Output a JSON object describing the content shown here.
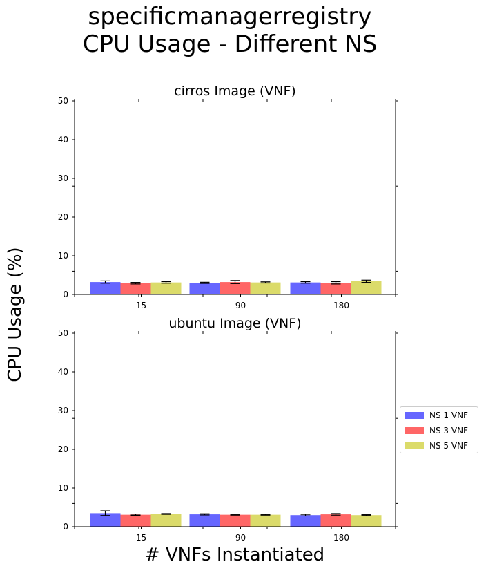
{
  "suptitle_line1": "specificmanagerregistry",
  "suptitle_line2": "CPU Usage - Different NS",
  "ylabel": "CPU Usage (%)",
  "xlabel": "# VNFs Instantiated",
  "legend": {
    "placement": "center-right",
    "items": [
      {
        "label": "NS 1 VNF",
        "color": "#6666ff"
      },
      {
        "label": "NS 3 VNF",
        "color": "#ff6666"
      },
      {
        "label": "NS 5 VNF",
        "color": "#dbdb6a"
      }
    ]
  },
  "chart_data": [
    {
      "type": "bar",
      "title": "cirros Image (VNF)",
      "categories": [
        "15",
        "90",
        "180"
      ],
      "ylim": [
        0,
        50
      ],
      "yticks": [
        0,
        10,
        20,
        30,
        40,
        50
      ],
      "series": [
        {
          "name": "NS 1 VNF",
          "color": "#6666ff",
          "values": [
            3.2,
            3.0,
            3.1
          ],
          "errors": [
            0.3,
            0.15,
            0.2
          ]
        },
        {
          "name": "NS 3 VNF",
          "color": "#ff6666",
          "values": [
            2.9,
            3.2,
            3.0
          ],
          "errors": [
            0.2,
            0.4,
            0.3
          ]
        },
        {
          "name": "NS 5 VNF",
          "color": "#dbdb6a",
          "values": [
            3.1,
            3.1,
            3.4
          ],
          "errors": [
            0.2,
            0.15,
            0.3
          ]
        }
      ]
    },
    {
      "type": "bar",
      "title": "ubuntu Image (VNF)",
      "categories": [
        "15",
        "90",
        "180"
      ],
      "ylim": [
        0,
        50
      ],
      "yticks": [
        0,
        10,
        20,
        30,
        40,
        50
      ],
      "series": [
        {
          "name": "NS 1 VNF",
          "color": "#6666ff",
          "values": [
            3.5,
            3.2,
            3.0
          ],
          "errors": [
            0.6,
            0.15,
            0.2
          ]
        },
        {
          "name": "NS 3 VNF",
          "color": "#ff6666",
          "values": [
            3.1,
            3.1,
            3.2
          ],
          "errors": [
            0.15,
            0.1,
            0.2
          ]
        },
        {
          "name": "NS 5 VNF",
          "color": "#dbdb6a",
          "values": [
            3.3,
            3.1,
            3.0
          ],
          "errors": [
            0.1,
            0.1,
            0.1
          ]
        }
      ]
    }
  ]
}
